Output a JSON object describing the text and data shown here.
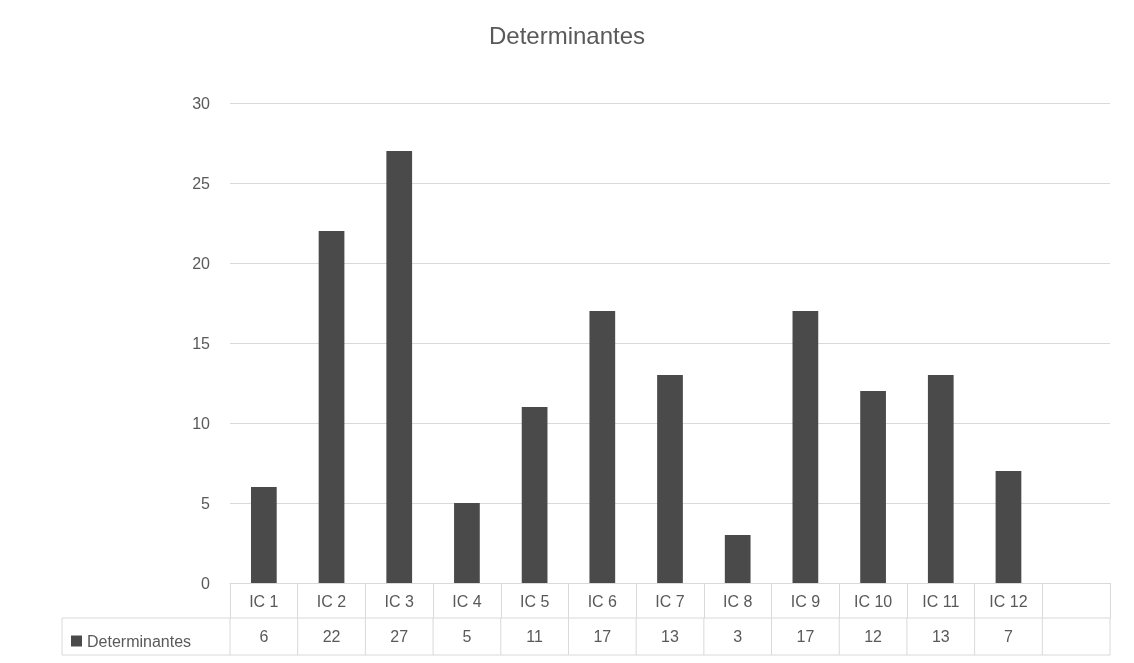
{
  "chart_data": {
    "type": "bar",
    "title": "Determinantes",
    "categories": [
      "IC 1",
      "IC 2",
      "IC 3",
      "IC 4",
      "IC 5",
      "IC 6",
      "IC 7",
      "IC 8",
      "IC 9",
      "IC 10",
      "IC 11",
      "IC 12",
      null
    ],
    "series": [
      {
        "name": "Determinantes",
        "color": "#4a4a4a",
        "values": [
          6,
          22,
          27,
          5,
          11,
          17,
          13,
          3,
          17,
          12,
          13,
          7,
          null
        ]
      }
    ],
    "ylim": [
      0,
      30
    ],
    "yticks": [
      0,
      5,
      10,
      15,
      20,
      25,
      30
    ],
    "grid": "y",
    "legend": "bottom left",
    "data_labels": true
  }
}
